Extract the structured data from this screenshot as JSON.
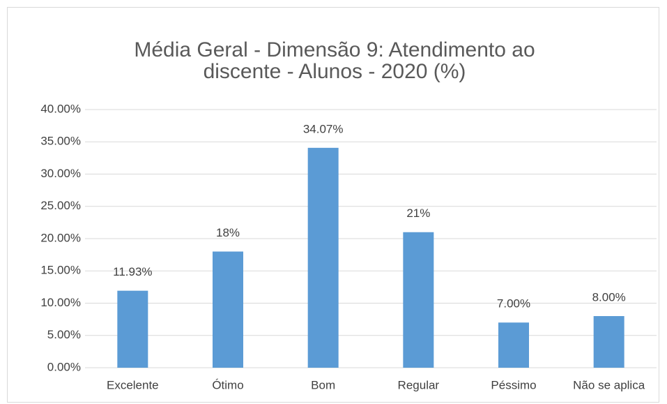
{
  "chart_data": {
    "type": "bar",
    "title": [
      "Média Geral - Dimensão 9: Atendimento ao",
      "discente - Alunos - 2020 (%)"
    ],
    "categories": [
      "Excelente",
      "Ótimo",
      "Bom",
      "Regular",
      "Péssimo",
      "Não se aplica"
    ],
    "values": [
      11.93,
      18,
      34.07,
      21,
      7,
      8
    ],
    "value_labels": [
      "11.93%",
      "18%",
      "34.07%",
      "21%",
      "7.00%",
      "8.00%"
    ],
    "color": "#5b9bd5",
    "ylim": [
      0,
      40
    ],
    "yticks": [
      {
        "value": 0,
        "label": "0.00%"
      },
      {
        "value": 5,
        "label": "5.00%"
      },
      {
        "value": 10,
        "label": "10.00%"
      },
      {
        "value": 15,
        "label": "15.00%"
      },
      {
        "value": 20,
        "label": "20.00%"
      },
      {
        "value": 25,
        "label": "25.00%"
      },
      {
        "value": 30,
        "label": "30.00%"
      },
      {
        "value": 35,
        "label": "35.00%"
      },
      {
        "value": 40,
        "label": "40.00%"
      }
    ],
    "grid": true
  }
}
